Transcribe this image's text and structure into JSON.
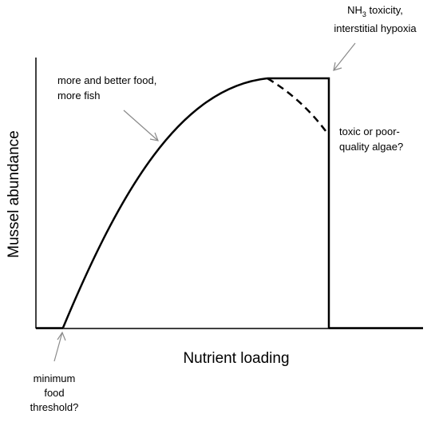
{
  "diagram": {
    "axes": {
      "y_label": "Mussel abundance",
      "x_label": "Nutrient loading"
    },
    "annotations": {
      "nh3": {
        "line1_prefix": "NH",
        "line1_sub": "3",
        "line1_suffix": " toxicity,",
        "line2": "interstitial hypoxia"
      },
      "food": {
        "line1": "more and better food,",
        "line2": "more fish"
      },
      "algae": {
        "line1": "toxic or poor-",
        "line2": "quality algae?"
      },
      "threshold": {
        "line1": "minimum",
        "line2": "food",
        "line3": "threshold?"
      }
    },
    "colors": {
      "ink": "#000000",
      "arrow": "#8a8a8a"
    }
  }
}
